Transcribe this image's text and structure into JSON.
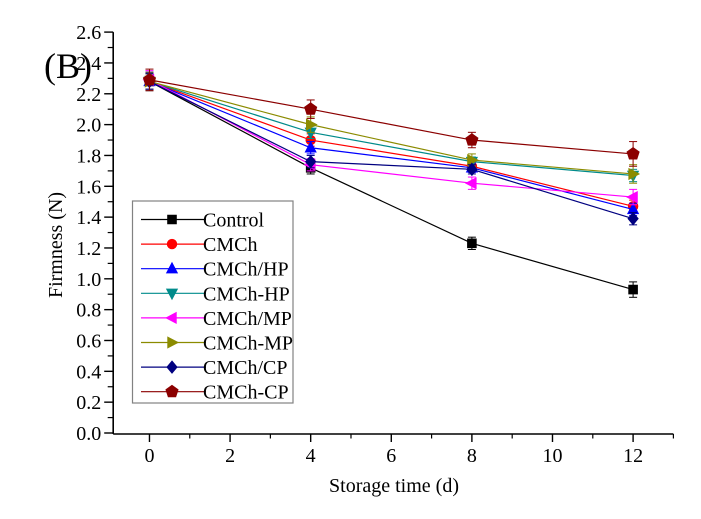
{
  "figure_label": "(B)",
  "chart_data": {
    "type": "line",
    "title": "",
    "xlabel": "Storage time (d)",
    "ylabel": "Firmness (N)",
    "x": [
      0,
      4,
      8,
      12
    ],
    "xlim": [
      -0.9,
      13
    ],
    "ylim": [
      0,
      2.6
    ],
    "x_major_ticks": [
      0,
      2,
      4,
      6,
      8,
      10,
      12
    ],
    "x_minor_ticks": [
      1,
      3,
      5,
      7,
      9,
      11,
      13
    ],
    "y_major_tick_step": 0.2,
    "y_minor_tick_step": 0.1,
    "grid": false,
    "legend_position": "middle-left",
    "legend_border_color": "#828282",
    "error_bars": true,
    "series": [
      {
        "name": "Control",
        "color": "#000000",
        "marker": "square",
        "values": [
          2.28,
          1.72,
          1.23,
          0.93
        ],
        "errors": [
          0.06,
          0.04,
          0.04,
          0.05
        ]
      },
      {
        "name": "CMCh",
        "color": "#FF0000",
        "marker": "circle",
        "values": [
          2.28,
          1.9,
          1.73,
          1.47
        ],
        "errors": [
          0.05,
          0.04,
          0.03,
          0.04
        ]
      },
      {
        "name": "CMCh/HP",
        "color": "#0000FF",
        "marker": "triangle-up",
        "values": [
          2.28,
          1.85,
          1.72,
          1.45
        ],
        "errors": [
          0.05,
          0.04,
          0.03,
          0.04
        ]
      },
      {
        "name": "CMCh-HP",
        "color": "#008B8B",
        "marker": "triangle-down",
        "values": [
          2.28,
          1.95,
          1.76,
          1.67
        ],
        "errors": [
          0.05,
          0.04,
          0.03,
          0.04
        ]
      },
      {
        "name": "CMCh/MP",
        "color": "#FF00FF",
        "marker": "triangle-left",
        "values": [
          2.29,
          1.74,
          1.62,
          1.53
        ],
        "errors": [
          0.06,
          0.04,
          0.04,
          0.05
        ]
      },
      {
        "name": "CMCh-MP",
        "color": "#8B8B00",
        "marker": "triangle-right",
        "values": [
          2.28,
          2.0,
          1.77,
          1.68
        ],
        "errors": [
          0.05,
          0.05,
          0.04,
          0.06
        ]
      },
      {
        "name": "CMCh/CP",
        "color": "#000080",
        "marker": "diamond",
        "values": [
          2.28,
          1.76,
          1.71,
          1.39
        ],
        "errors": [
          0.05,
          0.04,
          0.03,
          0.04
        ]
      },
      {
        "name": "CMCh-CP",
        "color": "#8B0000",
        "marker": "pentagon",
        "values": [
          2.29,
          2.1,
          1.9,
          1.81
        ],
        "errors": [
          0.07,
          0.06,
          0.05,
          0.08
        ]
      }
    ]
  }
}
